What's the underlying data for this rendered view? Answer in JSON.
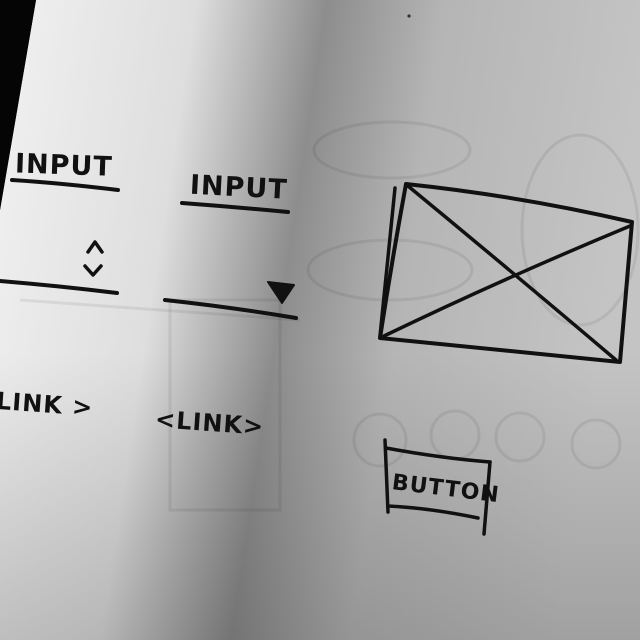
{
  "wireframe": {
    "input_left_label": "INPUT",
    "input_right_label": "INPUT",
    "stepper_icon": "up-down-chevron-icon",
    "dropdown_icon": "triangle-down-icon",
    "link_left_label": "LINK >",
    "link_right_label": "<LINK>",
    "button_label": "BUTTON",
    "image_placeholder_icon": "image-placeholder-x-icon"
  },
  "colors": {
    "ink": "#111111",
    "paper_light": "#f2f2f2",
    "paper_shadow": "#7a7a7a",
    "background": "#0b0b0b"
  }
}
